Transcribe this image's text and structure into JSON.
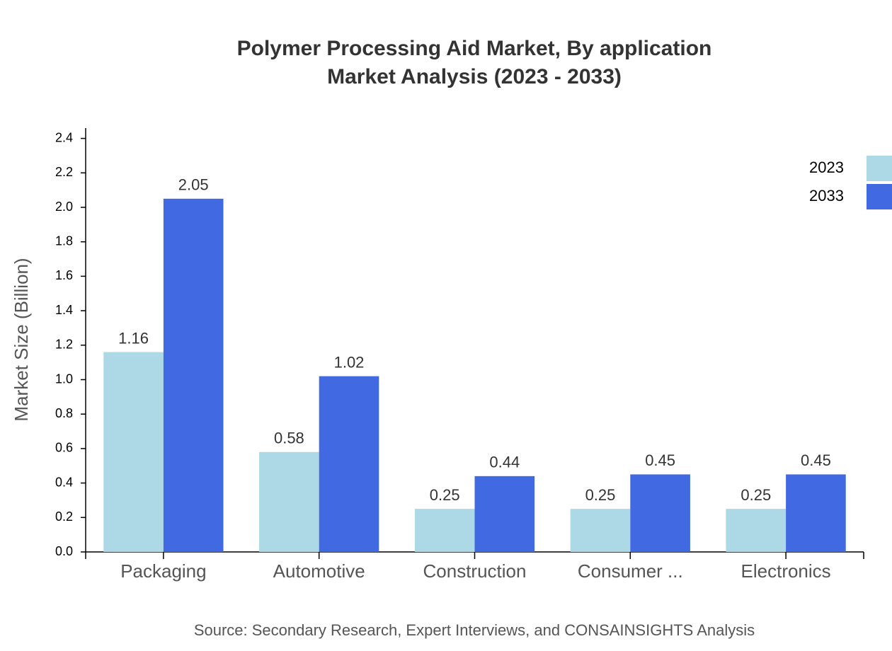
{
  "chart_data": {
    "type": "bar",
    "title": "Polymer Processing Aid Market, By application",
    "subtitle": "Market Analysis (2023 - 2033)",
    "y_label": "Market Size (Billion)",
    "source": "Source: Secondary Research, Expert Interviews, and CONSAINSIGHTS Analysis",
    "categories": [
      "Packaging",
      "Automotive",
      "Construction",
      "Consumer ...",
      "Electronics"
    ],
    "series": [
      {
        "name": "2023",
        "color": "#add8e6",
        "values": [
          1.16,
          0.58,
          0.25,
          0.25,
          0.25
        ]
      },
      {
        "name": "2033",
        "color": "#4169e1",
        "values": [
          2.05,
          1.02,
          0.44,
          0.45,
          0.45
        ]
      }
    ],
    "ylim": [
      0,
      2.46
    ],
    "yticks": [
      {
        "value": 0,
        "label": "0.0"
      },
      0.2,
      0.4,
      0.6,
      0.8,
      {
        "value": 1,
        "label": "1.0"
      },
      1.2,
      1.4,
      1.6,
      1.8,
      {
        "value": 2,
        "label": "2.0"
      },
      2.2,
      2.4
    ],
    "grid": false,
    "legend": "top-right"
  }
}
